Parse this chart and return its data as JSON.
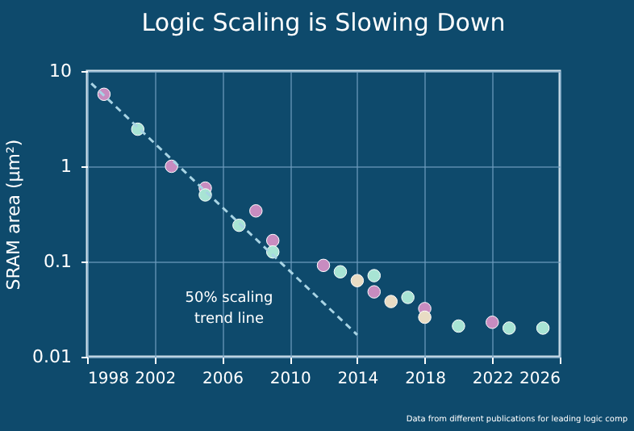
{
  "chart_data": {
    "type": "scatter",
    "title": "Logic Scaling is Slowing Down",
    "ylabel": "SRAM area (µm²)",
    "xlim": [
      1998,
      2026
    ],
    "xticks": [
      1998,
      2002,
      2006,
      2010,
      2014,
      2018,
      2022,
      2026
    ],
    "ylim": [
      0.01,
      10
    ],
    "yticks": [
      0.01,
      0.1,
      1,
      10
    ],
    "log": "y",
    "grid": true,
    "marker": "circle",
    "series": [
      {
        "color": "#c88cc0",
        "x": [
          1999,
          2003,
          2005,
          2008,
          2009,
          2012,
          2015,
          2018,
          2022
        ],
        "values": [
          5.7,
          1.0,
          0.59,
          0.34,
          0.166,
          0.091,
          0.048,
          0.032,
          0.023
        ]
      },
      {
        "color": "#a8e4d4",
        "x": [
          2001,
          2005,
          2007,
          2009,
          2013,
          2015,
          2017,
          2020,
          2023,
          2025
        ],
        "values": [
          2.45,
          0.5,
          0.24,
          0.126,
          0.078,
          0.071,
          0.042,
          0.021,
          0.02,
          0.02
        ]
      },
      {
        "color": "#e8dcc4",
        "x": [
          2014,
          2016,
          2018
        ],
        "values": [
          0.063,
          0.038,
          0.026
        ]
      },
      {
        "type": "line",
        "marker": "none",
        "color": "#a8d4e4",
        "line_style": "dashed",
        "x": [
          1998.25,
          2014
        ],
        "values": [
          7.4,
          0.017
        ]
      }
    ],
    "annotations": [
      "50% scaling\ntrend line",
      "Data from different publications for leading logic comp"
    ]
  }
}
